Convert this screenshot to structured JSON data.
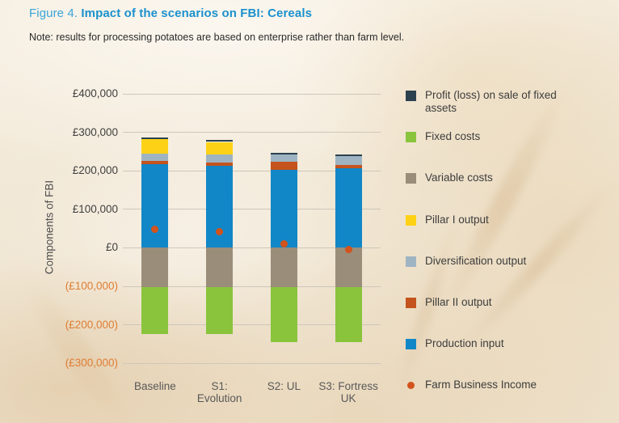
{
  "figure": {
    "label": "Figure 4.",
    "title": "Impact of the scenarios on FBI: Cereals",
    "note": "Note: results for processing potatoes are based on enterprise rather than farm level."
  },
  "colors": {
    "figure_label_blue": "#38a5da",
    "title_blue": "#1b91cd",
    "note_text": "#2a2a2a",
    "positive_tick": "#3f3f3f",
    "negative_tick": "#df7d33",
    "gridline": "#cdc7ba",
    "axis_title": "#4c4c4c",
    "xlabel_text": "#595959",
    "legend_text": "#3d3d3d"
  },
  "chart_data": {
    "type": "bar",
    "stacked": true,
    "title": "",
    "xlabel": "",
    "ylabel": "Components of  FBI",
    "ylim": [
      -300000,
      400000
    ],
    "grid": true,
    "legend_position": "right",
    "categories": [
      "Baseline",
      "S1: Evolution",
      "S2: UL",
      "S3: Fortress UK"
    ],
    "category_lines": [
      [
        "Baseline"
      ],
      [
        "S1:",
        "Evolution"
      ],
      [
        "S2: UL"
      ],
      [
        "S3: Fortress",
        "UK"
      ]
    ],
    "yticks": [
      {
        "label": "£400,000",
        "value": 400000
      },
      {
        "label": "£300,000",
        "value": 300000
      },
      {
        "label": "£200,000",
        "value": 200000
      },
      {
        "label": "£100,000",
        "value": 100000
      },
      {
        "label": "£0",
        "value": 0
      },
      {
        "label": "(£100,000)",
        "value": -100000
      },
      {
        "label": "(£200,000)",
        "value": -200000
      },
      {
        "label": "(£300,000)",
        "value": -300000
      }
    ],
    "series": [
      {
        "name": "Profit (loss) on sale of fixed assets",
        "type": "bar",
        "color": "#2c4150",
        "values": [
          5000,
          5000,
          4000,
          4000
        ]
      },
      {
        "name": "Fixed costs",
        "type": "bar",
        "color": "#89c43c",
        "values": [
          -122000,
          -122000,
          -141000,
          -141000
        ]
      },
      {
        "name": "Variable costs",
        "type": "bar",
        "color": "#9a8d7a",
        "values": [
          -103000,
          -103000,
          -103000,
          -103000
        ]
      },
      {
        "name": "Pillar I output",
        "type": "bar",
        "color": "#fdd216",
        "values": [
          38000,
          33000,
          0,
          0
        ]
      },
      {
        "name": "Diversification output",
        "type": "bar",
        "color": "#9fb4c2",
        "values": [
          19000,
          20000,
          20000,
          22000
        ]
      },
      {
        "name": "Pillar II output",
        "type": "bar",
        "color": "#c4531d",
        "values": [
          7000,
          8000,
          21000,
          10000
        ]
      },
      {
        "name": "Production input",
        "type": "bar",
        "color": "#1187c7",
        "values": [
          218000,
          214000,
          202000,
          206000
        ]
      },
      {
        "name": "Farm Business Income",
        "type": "point",
        "color": "#d2531c",
        "values": [
          48000,
          42000,
          10000,
          -4000
        ]
      }
    ],
    "stack_order": [
      "Production input",
      "Pillar II output",
      "Diversification output",
      "Pillar I output",
      "Profit (loss) on sale of fixed assets",
      "Variable costs",
      "Fixed costs"
    ]
  }
}
